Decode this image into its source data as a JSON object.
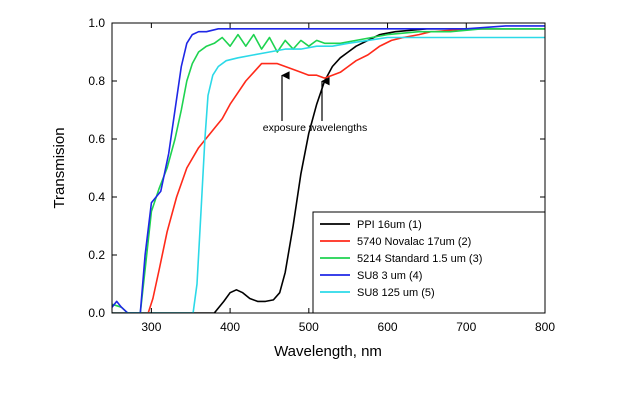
{
  "chart_data": {
    "type": "line",
    "xlabel": "Wavelength, nm",
    "ylabel": "Transmision",
    "xlim": [
      250,
      800
    ],
    "ylim": [
      0.0,
      1.0
    ],
    "xticks": [
      300,
      400,
      500,
      600,
      700,
      800
    ],
    "xtick_labels": [
      "300",
      "400",
      "500",
      "600",
      "700",
      "800"
    ],
    "yticks": [
      0.0,
      0.2,
      0.4,
      0.6,
      0.8,
      1.0
    ],
    "ytick_labels": [
      "0.0",
      "0.2",
      "0.4",
      "0.6",
      "0.8",
      "1.0"
    ],
    "legend_position": "bottom-right",
    "annotation": {
      "text": "exposure wavelengths",
      "targets": [
        {
          "x": 465,
          "y": 0.84
        },
        {
          "x": 520,
          "y": 0.82
        }
      ]
    },
    "series": [
      {
        "name": "PPI 16um (1)",
        "color": "#000000",
        "points": [
          [
            250,
            0.0
          ],
          [
            380,
            0.0
          ],
          [
            392,
            0.04
          ],
          [
            400,
            0.07
          ],
          [
            408,
            0.08
          ],
          [
            416,
            0.07
          ],
          [
            425,
            0.05
          ],
          [
            435,
            0.04
          ],
          [
            445,
            0.04
          ],
          [
            455,
            0.045
          ],
          [
            463,
            0.07
          ],
          [
            470,
            0.14
          ],
          [
            480,
            0.3
          ],
          [
            490,
            0.48
          ],
          [
            500,
            0.62
          ],
          [
            510,
            0.72
          ],
          [
            520,
            0.8
          ],
          [
            530,
            0.85
          ],
          [
            540,
            0.88
          ],
          [
            550,
            0.9
          ],
          [
            560,
            0.92
          ],
          [
            575,
            0.94
          ],
          [
            590,
            0.96
          ],
          [
            610,
            0.97
          ],
          [
            650,
            0.98
          ],
          [
            700,
            0.98
          ],
          [
            750,
            0.98
          ],
          [
            800,
            0.98
          ]
        ]
      },
      {
        "name": "5740 Novalac 17um (2)",
        "color": "#ff2a1a",
        "points": [
          [
            250,
            0.0
          ],
          [
            296,
            0.0
          ],
          [
            302,
            0.05
          ],
          [
            310,
            0.15
          ],
          [
            320,
            0.28
          ],
          [
            332,
            0.4
          ],
          [
            345,
            0.5
          ],
          [
            360,
            0.57
          ],
          [
            375,
            0.62
          ],
          [
            390,
            0.67
          ],
          [
            400,
            0.72
          ],
          [
            410,
            0.76
          ],
          [
            420,
            0.8
          ],
          [
            430,
            0.83
          ],
          [
            440,
            0.86
          ],
          [
            450,
            0.86
          ],
          [
            460,
            0.86
          ],
          [
            470,
            0.85
          ],
          [
            480,
            0.84
          ],
          [
            490,
            0.83
          ],
          [
            500,
            0.82
          ],
          [
            510,
            0.82
          ],
          [
            520,
            0.81
          ],
          [
            530,
            0.82
          ],
          [
            540,
            0.83
          ],
          [
            550,
            0.85
          ],
          [
            560,
            0.87
          ],
          [
            575,
            0.89
          ],
          [
            590,
            0.92
          ],
          [
            605,
            0.94
          ],
          [
            620,
            0.95
          ],
          [
            640,
            0.96
          ],
          [
            655,
            0.97
          ],
          [
            660,
            0.97
          ],
          [
            700,
            0.98
          ],
          [
            750,
            0.98
          ],
          [
            800,
            0.98
          ]
        ]
      },
      {
        "name": "5214 Standard 1.5 um (3)",
        "color": "#1ed350",
        "points": [
          [
            250,
            0.03
          ],
          [
            262,
            0.02
          ],
          [
            270,
            0.0
          ],
          [
            286,
            0.0
          ],
          [
            292,
            0.15
          ],
          [
            300,
            0.35
          ],
          [
            310,
            0.43
          ],
          [
            320,
            0.5
          ],
          [
            330,
            0.6
          ],
          [
            338,
            0.7
          ],
          [
            345,
            0.8
          ],
          [
            352,
            0.86
          ],
          [
            360,
            0.9
          ],
          [
            370,
            0.92
          ],
          [
            380,
            0.93
          ],
          [
            390,
            0.95
          ],
          [
            400,
            0.92
          ],
          [
            410,
            0.96
          ],
          [
            420,
            0.92
          ],
          [
            430,
            0.96
          ],
          [
            440,
            0.91
          ],
          [
            450,
            0.95
          ],
          [
            460,
            0.9
          ],
          [
            470,
            0.94
          ],
          [
            480,
            0.91
          ],
          [
            490,
            0.94
          ],
          [
            500,
            0.92
          ],
          [
            510,
            0.94
          ],
          [
            520,
            0.93
          ],
          [
            540,
            0.93
          ],
          [
            560,
            0.94
          ],
          [
            580,
            0.95
          ],
          [
            600,
            0.96
          ],
          [
            640,
            0.97
          ],
          [
            680,
            0.97
          ],
          [
            720,
            0.98
          ],
          [
            760,
            0.98
          ],
          [
            800,
            0.98
          ]
        ]
      },
      {
        "name": "SU8 3 um (4)",
        "color": "#1f27e6",
        "points": [
          [
            250,
            0.02
          ],
          [
            256,
            0.04
          ],
          [
            262,
            0.02
          ],
          [
            270,
            0.0
          ],
          [
            286,
            0.0
          ],
          [
            292,
            0.2
          ],
          [
            300,
            0.38
          ],
          [
            312,
            0.42
          ],
          [
            322,
            0.55
          ],
          [
            330,
            0.7
          ],
          [
            338,
            0.85
          ],
          [
            345,
            0.93
          ],
          [
            352,
            0.96
          ],
          [
            360,
            0.97
          ],
          [
            370,
            0.97
          ],
          [
            385,
            0.98
          ],
          [
            400,
            0.98
          ],
          [
            450,
            0.98
          ],
          [
            500,
            0.98
          ],
          [
            550,
            0.98
          ],
          [
            600,
            0.98
          ],
          [
            650,
            0.98
          ],
          [
            700,
            0.98
          ],
          [
            750,
            0.99
          ],
          [
            800,
            0.99
          ]
        ]
      },
      {
        "name": "SU8 125 um (5)",
        "color": "#2cd9e8",
        "points": [
          [
            250,
            0.0
          ],
          [
            353,
            0.0
          ],
          [
            358,
            0.1
          ],
          [
            363,
            0.35
          ],
          [
            368,
            0.6
          ],
          [
            372,
            0.75
          ],
          [
            378,
            0.82
          ],
          [
            385,
            0.85
          ],
          [
            395,
            0.87
          ],
          [
            410,
            0.88
          ],
          [
            430,
            0.89
          ],
          [
            450,
            0.9
          ],
          [
            470,
            0.91
          ],
          [
            490,
            0.91
          ],
          [
            510,
            0.92
          ],
          [
            530,
            0.92
          ],
          [
            550,
            0.93
          ],
          [
            575,
            0.94
          ],
          [
            600,
            0.95
          ],
          [
            650,
            0.95
          ],
          [
            700,
            0.95
          ],
          [
            750,
            0.95
          ],
          [
            800,
            0.95
          ]
        ]
      }
    ]
  }
}
